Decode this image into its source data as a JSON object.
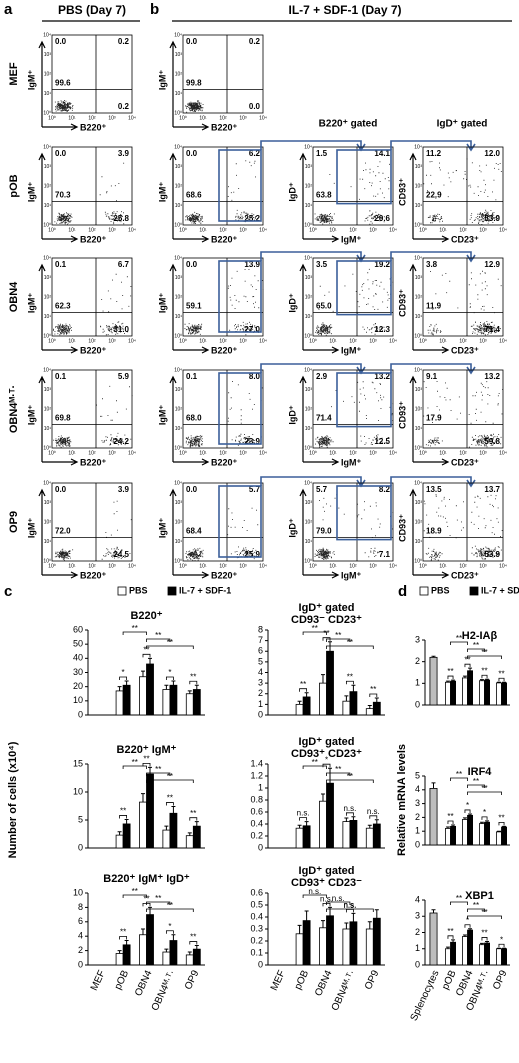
{
  "header": {
    "a": "a",
    "b": "b",
    "pbs": "PBS (Day 7)",
    "il7": "IL-7 + SDF-1 (Day 7)",
    "gate1": "B220⁺ gated",
    "gate2": "IgD⁺ gated",
    "c": "c",
    "d": "d",
    "c_ylabel": "Number of cells (x10⁴)",
    "d_ylabel": "Relative mRNA levels"
  },
  "flow": {
    "ticks": [
      "10⁰",
      "10¹",
      "10²",
      "10³",
      "10⁴"
    ],
    "rows": [
      {
        "label": "MEF",
        "plots": [
          {
            "x": "B220⁺",
            "y": "IgM⁺",
            "q": [
              0.0,
              0.2,
              99.6,
              0.2
            ],
            "q_labels": [
              "0.0",
              "0.2",
              "99.6",
              "0.2"
            ]
          },
          {
            "x": "B220⁺",
            "y": "IgM⁺",
            "q": [
              0.0,
              0.2,
              99.8,
              0.0
            ],
            "q_labels": [
              "0.0",
              "0.2",
              "99.8",
              "0.0"
            ]
          }
        ]
      },
      {
        "label": "pOB",
        "plots": [
          {
            "x": "B220⁺",
            "y": "IgM⁺",
            "q": [
              0.0,
              3.9,
              70.3,
              25.8
            ],
            "q_labels": [
              "0.0",
              "3.9",
              "70.3",
              "25.8"
            ]
          },
          {
            "x": "B220⁺",
            "y": "IgM⁺",
            "q": [
              0.0,
              6.2,
              68.6,
              25.2
            ],
            "q_labels": [
              "0.0",
              "6.2",
              "68.6",
              "25.2"
            ]
          },
          {
            "x": "IgM⁺",
            "y": "IgD⁺",
            "q": [
              1.5,
              14.1,
              63.8,
              20.6
            ],
            "q_labels": [
              "1.5",
              "14.1",
              "63.8",
              "20.6"
            ]
          },
          {
            "x": "CD23⁺",
            "y": "CD93⁺",
            "q": [
              11.2,
              12.0,
              22.9,
              53.9
            ],
            "q_labels": [
              "11.2",
              "12.0",
              "22.9",
              "53.9"
            ]
          }
        ]
      },
      {
        "label": "OBN4",
        "plots": [
          {
            "x": "B220⁺",
            "y": "IgM⁺",
            "q": [
              0.1,
              6.7,
              62.3,
              31.0
            ],
            "q_labels": [
              "0.1",
              "6.7",
              "62.3",
              "31.0"
            ]
          },
          {
            "x": "B220⁺",
            "y": "IgM⁺",
            "q": [
              0.0,
              13.9,
              59.1,
              27.0
            ],
            "q_labels": [
              "0.0",
              "13.9",
              "59.1",
              "27.0"
            ]
          },
          {
            "x": "IgM⁺",
            "y": "IgD⁺",
            "q": [
              3.5,
              19.2,
              65.0,
              12.3
            ],
            "q_labels": [
              "3.5",
              "19.2",
              "65.0",
              "12.3"
            ]
          },
          {
            "x": "CD23⁺",
            "y": "CD93⁺",
            "q": [
              3.8,
              12.9,
              11.9,
              71.4
            ],
            "q_labels": [
              "3.8",
              "12.9",
              "11.9",
              "71.4"
            ]
          }
        ]
      },
      {
        "label": "OBN4ᴹ·ᵀ·",
        "plots": [
          {
            "x": "B220⁺",
            "y": "IgM⁺",
            "q": [
              0.1,
              5.9,
              69.8,
              24.2
            ],
            "q_labels": [
              "0.1",
              "5.9",
              "69.8",
              "24.2"
            ]
          },
          {
            "x": "B220⁺",
            "y": "IgM⁺",
            "q": [
              0.1,
              8.0,
              68.0,
              23.9
            ],
            "q_labels": [
              "0.1",
              "8.0",
              "68.0",
              "23.9"
            ]
          },
          {
            "x": "IgM⁺",
            "y": "IgD⁺",
            "q": [
              2.9,
              13.2,
              71.4,
              12.5
            ],
            "q_labels": [
              "2.9",
              "13.2",
              "71.4",
              "12.5"
            ]
          },
          {
            "x": "CD23⁺",
            "y": "CD93⁺",
            "q": [
              9.1,
              13.2,
              17.9,
              59.8
            ],
            "q_labels": [
              "9.1",
              "13.2",
              "17.9",
              "59.8"
            ]
          }
        ]
      },
      {
        "label": "OP9",
        "plots": [
          {
            "x": "B220⁺",
            "y": "IgM⁺",
            "q": [
              0.0,
              3.9,
              72.0,
              24.5
            ],
            "q_labels": [
              "0.0",
              "3.9",
              "72.0",
              "24.5"
            ]
          },
          {
            "x": "B220⁺",
            "y": "IgM⁺",
            "q": [
              0.0,
              5.7,
              68.4,
              25.9
            ],
            "q_labels": [
              "0.0",
              "5.7",
              "68.4",
              "25.9"
            ]
          },
          {
            "x": "IgM⁺",
            "y": "IgD⁺",
            "q": [
              5.7,
              8.2,
              79.0,
              7.1
            ],
            "q_labels": [
              "5.7",
              "8.2",
              "79.0",
              "7.1"
            ]
          },
          {
            "x": "CD23⁺",
            "y": "CD93⁺",
            "q": [
              13.5,
              13.7,
              18.9,
              53.9
            ],
            "q_labels": [
              "13.5",
              "13.7",
              "18.9",
              "53.9"
            ]
          }
        ]
      }
    ]
  },
  "chart_data": [
    {
      "type": "bar",
      "title": "B220⁺",
      "categories": [
        "MEF",
        "pOB",
        "OBN4",
        "OBN4ᴹ·ᵀ·",
        "OP9"
      ],
      "ylim": [
        0,
        60
      ],
      "yticks": [
        0,
        10,
        20,
        30,
        40,
        50,
        60
      ],
      "series": [
        {
          "name": "PBS",
          "color": "#ffffff",
          "values": [
            null,
            17,
            27,
            18,
            15
          ],
          "errors": [
            null,
            3,
            4,
            3,
            2
          ]
        },
        {
          "name": "IL-7 + SDF-1",
          "color": "#000000",
          "values": [
            null,
            21,
            36,
            21,
            18
          ],
          "errors": [
            null,
            3,
            4,
            3,
            3
          ]
        }
      ],
      "significance": [
        null,
        "*",
        "**",
        "*",
        "**"
      ],
      "brackets": [
        "**",
        "**",
        "**"
      ]
    },
    {
      "type": "bar",
      "title": "IgD⁺ gated",
      "subtitle": "CD93⁻ CD23⁺",
      "categories": [
        "MEF",
        "pOB",
        "OBN4",
        "OBN4ᴹ·ᵀ·",
        "OP9"
      ],
      "ylim": [
        0,
        8
      ],
      "yticks": [
        0,
        1,
        2,
        3,
        4,
        5,
        6,
        7,
        8
      ],
      "series": [
        {
          "name": "PBS",
          "color": "#ffffff",
          "values": [
            null,
            1.0,
            3.0,
            1.3,
            0.6
          ],
          "errors": [
            null,
            0.3,
            0.8,
            0.5,
            0.3
          ]
        },
        {
          "name": "IL-7 + SDF-1",
          "color": "#000000",
          "values": [
            null,
            1.7,
            6.0,
            2.2,
            1.2
          ],
          "errors": [
            null,
            0.4,
            0.9,
            0.6,
            0.4
          ]
        }
      ],
      "significance": [
        null,
        "**",
        "**",
        "**",
        "**"
      ],
      "brackets": [
        "**",
        "**",
        "**"
      ]
    },
    {
      "type": "bar",
      "title": "B220⁺ IgM⁺",
      "categories": [
        "MEF",
        "pOB",
        "OBN4",
        "OBN4ᴹ·ᵀ·",
        "OP9"
      ],
      "ylim": [
        0,
        15
      ],
      "yticks": [
        0,
        5,
        10,
        15
      ],
      "series": [
        {
          "name": "PBS",
          "color": "#ffffff",
          "values": [
            null,
            2.3,
            8.2,
            3.2,
            2.2
          ],
          "errors": [
            null,
            0.6,
            1.5,
            0.7,
            0.5
          ]
        },
        {
          "name": "IL-7 + SDF-1",
          "color": "#000000",
          "values": [
            null,
            4.3,
            13.2,
            6.2,
            3.9
          ],
          "errors": [
            null,
            0.8,
            1.2,
            1.2,
            0.8
          ]
        }
      ],
      "significance": [
        null,
        "**",
        "**",
        "**",
        "**"
      ],
      "brackets": [
        "**",
        "**",
        "**"
      ]
    },
    {
      "type": "bar",
      "title": "IgD⁺ gated",
      "subtitle": "CD93⁺ CD23⁺",
      "categories": [
        "MEF",
        "pOB",
        "OBN4",
        "OBN4ᴹ·ᵀ·",
        "OP9"
      ],
      "ylim": [
        0,
        1.4
      ],
      "yticks": [
        0,
        0.2,
        0.4,
        0.6,
        0.8,
        1,
        1.2,
        1.4
      ],
      "series": [
        {
          "name": "PBS",
          "color": "#ffffff",
          "values": [
            null,
            0.33,
            0.78,
            0.44,
            0.33
          ],
          "errors": [
            null,
            0.05,
            0.12,
            0.06,
            0.05
          ]
        },
        {
          "name": "IL-7 + SDF-1",
          "color": "#000000",
          "values": [
            null,
            0.37,
            1.08,
            0.46,
            0.4
          ],
          "errors": [
            null,
            0.07,
            0.25,
            0.06,
            0.07
          ]
        }
      ],
      "significance": [
        null,
        "n.s.",
        "*",
        "n.s.",
        "n.s."
      ],
      "brackets": [
        "**",
        "**",
        "**"
      ]
    },
    {
      "type": "bar",
      "title": "B220⁺ IgM⁺ IgD⁺",
      "categories": [
        "MEF",
        "pOB",
        "OBN4",
        "OBN4ᴹ·ᵀ·",
        "OP9"
      ],
      "ylim": [
        0,
        10
      ],
      "yticks": [
        0,
        2,
        4,
        6,
        8,
        10
      ],
      "series": [
        {
          "name": "PBS",
          "color": "#ffffff",
          "values": [
            null,
            1.6,
            4.2,
            1.8,
            1.4
          ],
          "errors": [
            null,
            0.4,
            0.8,
            0.4,
            0.4
          ]
        },
        {
          "name": "IL-7 + SDF-1",
          "color": "#000000",
          "values": [
            null,
            2.8,
            7.0,
            3.4,
            2.2
          ],
          "errors": [
            null,
            0.6,
            1.0,
            0.8,
            0.5
          ]
        }
      ],
      "significance": [
        null,
        "**",
        "**",
        "*",
        "**"
      ],
      "brackets": [
        "**",
        "**",
        "**"
      ]
    },
    {
      "type": "bar",
      "title": "IgD⁺ gated",
      "subtitle": "CD93⁺ CD23⁻",
      "categories": [
        "MEF",
        "pOB",
        "OBN4",
        "OBN4ᴹ·ᵀ·",
        "OP9"
      ],
      "ylim": [
        0,
        0.6
      ],
      "yticks": [
        0,
        0.1,
        0.2,
        0.3,
        0.4,
        0.5,
        0.6
      ],
      "series": [
        {
          "name": "PBS",
          "color": "#ffffff",
          "values": [
            null,
            0.26,
            0.31,
            0.3,
            0.3
          ],
          "errors": [
            null,
            0.07,
            0.06,
            0.05,
            0.06
          ]
        },
        {
          "name": "IL-7 + SDF-1",
          "color": "#000000",
          "values": [
            null,
            0.37,
            0.41,
            0.36,
            0.39
          ],
          "errors": [
            null,
            0.08,
            0.07,
            0.07,
            0.07
          ]
        }
      ],
      "significance": [
        null,
        null,
        "n.s.",
        "n.s.",
        null
      ],
      "brackets": [
        "n.s.",
        "n.s.",
        "n.s."
      ]
    },
    {
      "type": "bar",
      "title": "H2-IAβ",
      "categories": [
        "Splenocytes",
        "pOB",
        "OBN4",
        "OBN4ᴹ·ᵀ·",
        "OP9"
      ],
      "ylim": [
        0,
        3
      ],
      "yticks": [
        0,
        1,
        2,
        3
      ],
      "series": [
        {
          "name": "PBS",
          "color": "#ffffff",
          "values": [
            null,
            1.05,
            1.25,
            1.12,
            1.02
          ],
          "errors": [
            null,
            0.05,
            0.08,
            0.05,
            0.03
          ]
        },
        {
          "name": "IL-7 + SDF-1",
          "color": "#000000",
          "values": [
            null,
            1.1,
            1.58,
            1.15,
            1.02
          ],
          "errors": [
            null,
            0.05,
            0.12,
            0.04,
            0.03
          ]
        },
        {
          "color": "#bdbdbd",
          "values": [
            2.2,
            null,
            null,
            null,
            null
          ],
          "errors": [
            0.05,
            null,
            null,
            null,
            null
          ]
        }
      ],
      "significance": [
        null,
        "**",
        "**",
        "**",
        "**"
      ],
      "brackets": [
        "**",
        "**",
        "**"
      ]
    },
    {
      "type": "bar",
      "title": "IRF4",
      "categories": [
        "Splenocytes",
        "pOB",
        "OBN4",
        "OBN4ᴹ·ᵀ·",
        "OP9"
      ],
      "ylim": [
        0,
        5
      ],
      "yticks": [
        0,
        1,
        2,
        3,
        4,
        5
      ],
      "series": [
        {
          "name": "PBS",
          "color": "#ffffff",
          "values": [
            null,
            1.2,
            1.85,
            1.55,
            0.95
          ],
          "errors": [
            null,
            0.1,
            0.12,
            0.1,
            0.05
          ]
        },
        {
          "name": "IL-7 + SDF-1",
          "color": "#000000",
          "values": [
            null,
            1.35,
            2.15,
            1.65,
            1.3
          ],
          "errors": [
            null,
            0.1,
            0.1,
            0.1,
            0.05
          ]
        },
        {
          "color": "#bdbdbd",
          "values": [
            4.1,
            null,
            null,
            null,
            null
          ],
          "errors": [
            0.4,
            null,
            null,
            null,
            null
          ]
        }
      ],
      "significance": [
        null,
        "**",
        "*",
        "*",
        "**"
      ],
      "brackets": [
        "**",
        "**",
        "**"
      ]
    },
    {
      "type": "bar",
      "title": "XBP1",
      "categories": [
        "Splenocytes",
        "pOB",
        "OBN4",
        "OBN4ᴹ·ᵀ·",
        "OP9"
      ],
      "ylim": [
        0,
        4
      ],
      "yticks": [
        0,
        1,
        2,
        3,
        4
      ],
      "series": [
        {
          "name": "PBS",
          "color": "#ffffff",
          "values": [
            null,
            1.0,
            1.75,
            1.25,
            1.0
          ],
          "errors": [
            null,
            0.1,
            0.1,
            0.08,
            0.03
          ]
        },
        {
          "name": "IL-7 + SDF-1",
          "color": "#000000",
          "values": [
            null,
            1.4,
            2.15,
            1.35,
            1.0
          ],
          "errors": [
            null,
            0.15,
            0.08,
            0.1,
            0.03
          ]
        },
        {
          "color": "#bdbdbd",
          "values": [
            3.2,
            null,
            null,
            null,
            null
          ],
          "errors": [
            0.2,
            null,
            null,
            null,
            null
          ]
        }
      ],
      "significance": [
        null,
        "**",
        "*",
        "**",
        "*"
      ],
      "brackets": [
        "**",
        "**",
        "**"
      ]
    }
  ]
}
